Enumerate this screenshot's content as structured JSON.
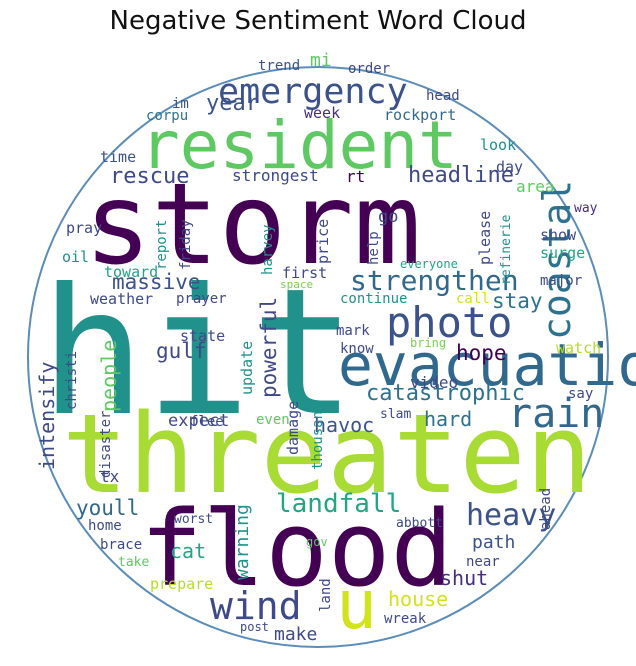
{
  "title": "Negative Sentiment Word Cloud",
  "colors": {
    "border": "#5b8db8",
    "background": "#ffffff"
  },
  "words": [
    {
      "text": "storm",
      "color": "#440154"
    },
    {
      "text": "hit",
      "color": "#21918c"
    },
    {
      "text": "threaten",
      "color": "#a8db34"
    },
    {
      "text": "flood",
      "color": "#440154"
    },
    {
      "text": "resident",
      "color": "#5ec962"
    },
    {
      "text": "evacuation",
      "color": "#31688e"
    },
    {
      "text": "emergency",
      "color": "#3b528b"
    },
    {
      "text": "photo",
      "color": "#3b528b"
    },
    {
      "text": "rain",
      "color": "#31688e"
    },
    {
      "text": "u",
      "color": "#d2e21b"
    },
    {
      "text": "wind",
      "color": "#3e4989"
    },
    {
      "text": "coastal",
      "color": "#2c728e"
    },
    {
      "text": "strengthen",
      "color": "#31688e"
    },
    {
      "text": "heavy",
      "color": "#3b528b"
    },
    {
      "text": "landfall",
      "color": "#21a685"
    },
    {
      "text": "catastrophic",
      "color": "#2c728e"
    },
    {
      "text": "year",
      "color": "#3b528b"
    },
    {
      "text": "massive",
      "color": "#3b528b"
    },
    {
      "text": "headline",
      "color": "#3e4989"
    },
    {
      "text": "rescue",
      "color": "#3e4989"
    },
    {
      "text": "powerful",
      "color": "#3e4989"
    },
    {
      "text": "intensify",
      "color": "#3e4989"
    },
    {
      "text": "people",
      "color": "#5ec962"
    },
    {
      "text": "gulf",
      "color": "#3e4989"
    },
    {
      "text": "hope",
      "color": "#440154"
    },
    {
      "text": "stay",
      "color": "#2c728e"
    },
    {
      "text": "hard",
      "color": "#2c728e"
    },
    {
      "text": "house",
      "color": "#d2e21b"
    },
    {
      "text": "cat",
      "color": "#21a685"
    },
    {
      "text": "youll",
      "color": "#31688e"
    },
    {
      "text": "shut",
      "color": "#472d7b"
    },
    {
      "text": "make",
      "color": "#3e4989"
    },
    {
      "text": "path",
      "color": "#3b528b"
    },
    {
      "text": "warning",
      "color": "#21918c"
    },
    {
      "text": "havoc",
      "color": "#3b528b"
    },
    {
      "text": "expect",
      "color": "#3e4989"
    },
    {
      "text": "video",
      "color": "#3e4989"
    },
    {
      "text": "strongest",
      "color": "#3e4989"
    },
    {
      "text": "mi",
      "color": "#5ec962"
    },
    {
      "text": "trend",
      "color": "#3b528b"
    },
    {
      "text": "order",
      "color": "#3e4989"
    },
    {
      "text": "head",
      "color": "#3e4989"
    },
    {
      "text": "rockport",
      "color": "#31688e"
    },
    {
      "text": "week",
      "color": "#472d7b"
    },
    {
      "text": "corpu",
      "color": "#2c728e"
    },
    {
      "text": "im",
      "color": "#3b528b"
    },
    {
      "text": "look",
      "color": "#21918c"
    },
    {
      "text": "day",
      "color": "#3e4989"
    },
    {
      "text": "area",
      "color": "#5ec962"
    },
    {
      "text": "way",
      "color": "#472d7b"
    },
    {
      "text": "time",
      "color": "#3b528b"
    },
    {
      "text": "rt",
      "color": "#440154"
    },
    {
      "text": "pray",
      "color": "#3e4989"
    },
    {
      "text": "report",
      "color": "#21918c"
    },
    {
      "text": "friday",
      "color": "#3e4989"
    },
    {
      "text": "harvey",
      "color": "#21918c"
    },
    {
      "text": "price",
      "color": "#3e4989"
    },
    {
      "text": "help",
      "color": "#3e4989"
    },
    {
      "text": "please",
      "color": "#3e4989"
    },
    {
      "text": "refinerie",
      "color": "#21918c"
    },
    {
      "text": "show",
      "color": "#3e4989"
    },
    {
      "text": "surge",
      "color": "#21a685"
    },
    {
      "text": "go",
      "color": "#3e4989"
    },
    {
      "text": "oil",
      "color": "#21918c"
    },
    {
      "text": "toward",
      "color": "#21a685"
    },
    {
      "text": "everyone",
      "color": "#21a685"
    },
    {
      "text": "first",
      "color": "#3e4989"
    },
    {
      "text": "space",
      "color": "#7ad151"
    },
    {
      "text": "weather",
      "color": "#3e4989"
    },
    {
      "text": "prayer",
      "color": "#3e4989"
    },
    {
      "text": "continue",
      "color": "#21918c"
    },
    {
      "text": "call",
      "color": "#d2e21b"
    },
    {
      "text": "major",
      "color": "#3e4989"
    },
    {
      "text": "state",
      "color": "#3e4989"
    },
    {
      "text": "update",
      "color": "#21918c"
    },
    {
      "text": "mark",
      "color": "#3e4989"
    },
    {
      "text": "know",
      "color": "#3e4989"
    },
    {
      "text": "bring",
      "color": "#7ad151"
    },
    {
      "text": "watch",
      "color": "#b5de2b"
    },
    {
      "text": "christi",
      "color": "#3e4989"
    },
    {
      "text": "flee",
      "color": "#3e4989"
    },
    {
      "text": "damage",
      "color": "#3e4989"
    },
    {
      "text": "thousand",
      "color": "#21918c"
    },
    {
      "text": "say",
      "color": "#3e4989"
    },
    {
      "text": "disaster",
      "color": "#3e4989"
    },
    {
      "text": "even",
      "color": "#5ec962"
    },
    {
      "text": "slam",
      "color": "#3e4989"
    },
    {
      "text": "tx",
      "color": "#3e4989"
    },
    {
      "text": "home",
      "color": "#3e4989"
    },
    {
      "text": "worst",
      "color": "#3e4989"
    },
    {
      "text": "brace",
      "color": "#3e4989"
    },
    {
      "text": "abbott",
      "color": "#3e4989"
    },
    {
      "text": "ahead",
      "color": "#3e4989"
    },
    {
      "text": "near",
      "color": "#3e4989"
    },
    {
      "text": "take",
      "color": "#5ec962"
    },
    {
      "text": "gov",
      "color": "#5ec962"
    },
    {
      "text": "prepare",
      "color": "#b5de2b"
    },
    {
      "text": "land",
      "color": "#3e4989"
    },
    {
      "text": "post",
      "color": "#3e4989"
    },
    {
      "text": "wreak",
      "color": "#3e4989"
    }
  ]
}
